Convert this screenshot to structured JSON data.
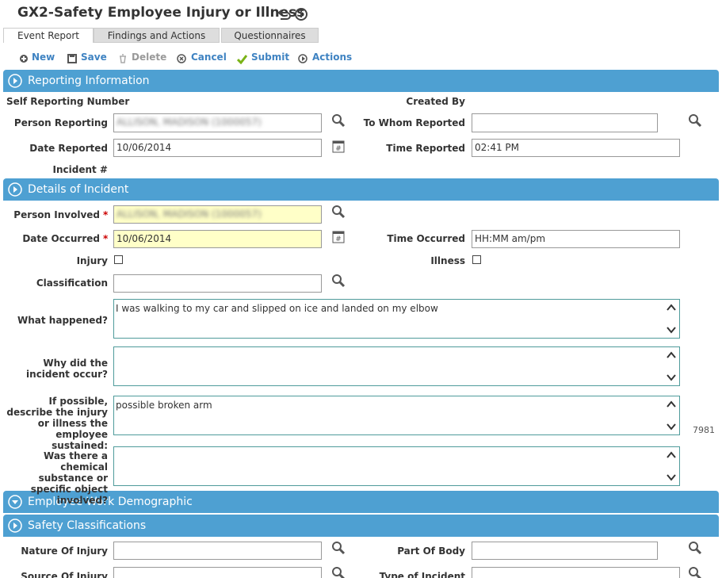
{
  "header": {
    "title": "GX2-Safety Employee Injury or Illness"
  },
  "tabs": [
    "Event Report",
    "Findings and Actions",
    "Questionnaires"
  ],
  "toolbar": [
    "New",
    "Save",
    "Delete",
    "Cancel",
    "Submit",
    "Actions"
  ],
  "sections": [
    "Reporting Information",
    "Details of Incident",
    "Employee Work Demographic",
    "Safety Classifications"
  ],
  "required_mark": "*",
  "counter": "7981",
  "fields": [
    {
      "label": "Self Reporting Number"
    },
    {
      "label": "Created By"
    },
    {
      "label": "Person Reporting",
      "value": "ALLISON, MADISON (1000057)"
    },
    {
      "label": "To Whom Reported"
    },
    {
      "label": "Date Reported",
      "value": "10/06/2014"
    },
    {
      "label": "Time Reported",
      "value": "02:41 PM"
    },
    {
      "label": "Incident #"
    },
    {
      "label": "Person Involved",
      "value": "ALLISON, MADISON (1000057)"
    },
    {
      "label": "Date Occurred",
      "value": "10/06/2014"
    },
    {
      "label": "Time Occurred",
      "value": "HH:MM am/pm"
    },
    {
      "label": "Injury"
    },
    {
      "label": "Illness"
    },
    {
      "label": "Classification"
    },
    {
      "label": "What happened?",
      "value": "I was walking to my car and slipped on ice and landed on my elbow"
    },
    {
      "label": "Why did the incident occur?"
    },
    {
      "label": "If possible, describe the injury or illness the employee sustained:",
      "value": "possible broken arm"
    },
    {
      "label": "Was there a chemical substance or specific object involved?"
    },
    {
      "label": "Nature Of Injury"
    },
    {
      "label": "Part Of Body"
    },
    {
      "label": "Source Of Injury"
    },
    {
      "label": "Type of Incident"
    }
  ]
}
